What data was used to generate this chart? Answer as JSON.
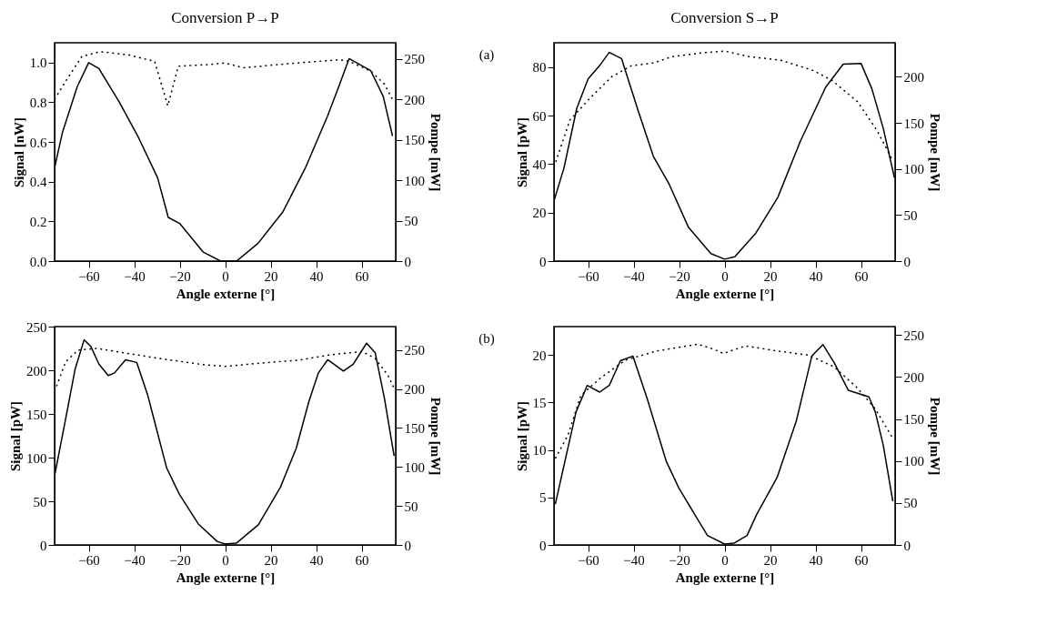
{
  "chart_data": [
    {
      "type": "line",
      "title": "Conversion P→P",
      "xlabel": "Angle externe [°]",
      "ylabel": "Signal [nW]",
      "y2label": "Pompe [mW]",
      "annotations": [
        "(a)"
      ],
      "xlim": [
        -75,
        75
      ],
      "xticks": [
        -60,
        -40,
        -20,
        0,
        20,
        40,
        60
      ],
      "ylim": [
        0,
        1.1
      ],
      "yticks": [
        {
          "value": 0,
          "label": "0.0"
        },
        0.2,
        0.4,
        0.6,
        0.8,
        {
          "value": 1,
          "label": "1.0"
        }
      ],
      "y2lim": [
        0,
        270
      ],
      "y2ticks": [
        0,
        50,
        100,
        150,
        200,
        250
      ],
      "series": [
        {
          "color": "#000000",
          "line_style": "solid",
          "x": [
            -75,
            -71.5,
            -65,
            -60,
            -55.5,
            -46.5,
            -38,
            -29.7,
            -25,
            -20,
            -9.6,
            -2,
            5,
            14.5,
            25.5,
            35.3,
            45,
            50,
            54.5,
            64,
            69.5,
            73.6
          ],
          "values": [
            0.47,
            0.65,
            0.88,
            1.0,
            0.97,
            0.8,
            0.62,
            0.42,
            0.22,
            0.19,
            0.045,
            0,
            0,
            0.09,
            0.25,
            0.47,
            0.73,
            0.88,
            1.02,
            0.96,
            0.83,
            0.63
          ]
        },
        {
          "color": "#000000",
          "line_style": "dotted",
          "axis": "y2",
          "x": [
            -75,
            -70,
            -63,
            -55,
            -42.5,
            -31,
            -25.2,
            -20.6,
            -7.5,
            0,
            8,
            27,
            50.5,
            54.5,
            64,
            70,
            73.6
          ],
          "values": [
            200,
            223,
            253,
            259,
            255,
            247,
            192,
            241,
            243,
            245,
            239,
            244,
            249,
            247,
            235,
            219,
            200
          ]
        }
      ]
    },
    {
      "type": "line",
      "title": "Conversion S→P",
      "xlabel": "Angle externe [°]",
      "ylabel": "Signal [pW]",
      "y2label": "Pompe [mW]",
      "xlim": [
        -75,
        75
      ],
      "xticks": [
        -60,
        -40,
        -20,
        0,
        20,
        40,
        60
      ],
      "ylim": [
        0,
        90
      ],
      "yticks": [
        0,
        20,
        40,
        60,
        80
      ],
      "y2lim": [
        0,
        237
      ],
      "y2ticks": [
        0,
        50,
        100,
        150,
        200
      ],
      "series": [
        {
          "color": "#000000",
          "line_style": "solid",
          "x": [
            -75,
            -70.6,
            -65,
            -60,
            -55,
            -50.7,
            -45.3,
            -38.3,
            -31.3,
            -24.3,
            -15.9,
            -6,
            0,
            4.5,
            13.6,
            23.4,
            33.3,
            44.5,
            52.2,
            60,
            64.8,
            69.8,
            74.7
          ],
          "values": [
            24.8,
            38.4,
            62.9,
            75.1,
            80.5,
            86,
            83.5,
            62.9,
            43.2,
            31.6,
            14,
            3.1,
            0.8,
            1.8,
            11.3,
            26.2,
            49.3,
            71.7,
            81.2,
            81.5,
            71,
            54.7,
            34.4
          ]
        },
        {
          "color": "#000000",
          "line_style": "dotted",
          "axis": "y2",
          "x": [
            -75,
            -68,
            -59.5,
            -49.7,
            -41,
            -31.3,
            -23,
            -10,
            0,
            10.8,
            24.8,
            38.9,
            47.3,
            58.5,
            67,
            74
          ],
          "values": [
            102,
            153,
            176,
            200,
            212,
            215,
            222,
            226,
            228,
            222,
            218,
            207,
            196,
            173,
            142,
            109
          ]
        }
      ]
    },
    {
      "type": "line",
      "xlabel": "Angle externe [°]",
      "ylabel": "Signal [pW]",
      "y2label": "Pompe [mW]",
      "annotations": [
        "(b)"
      ],
      "xlim": [
        -75,
        75
      ],
      "xticks": [
        -60,
        -40,
        -20,
        0,
        20,
        40,
        60
      ],
      "ylim": [
        0,
        250
      ],
      "yticks": [
        0,
        50,
        100,
        150,
        200,
        250
      ],
      "y2lim": [
        0,
        280
      ],
      "y2ticks": [
        0,
        50,
        100,
        150,
        200,
        250
      ],
      "series": [
        {
          "color": "#000000",
          "line_style": "solid",
          "x": [
            -75,
            -70.1,
            -66,
            -62,
            -59,
            -55.5,
            -51.4,
            -48.6,
            -43.8,
            -38.9,
            -34,
            -30.6,
            -25.7,
            -20.1,
            -11.8,
            -3.5,
            0,
            4.9,
            14.6,
            24.3,
            31.3,
            36.8,
            41,
            45.1,
            52,
            56.3,
            62.2,
            66,
            70.1,
            74.3
          ],
          "values": [
            79,
            145,
            201,
            235,
            227,
            207,
            194,
            197,
            212,
            209,
            171,
            137,
            88,
            58,
            24,
            4,
            1,
            2,
            23,
            66,
            111,
            164,
            197,
            212,
            199,
            207,
            231,
            220,
            167,
            102
          ]
        },
        {
          "color": "#000000",
          "line_style": "dotted",
          "axis": "y2",
          "x": [
            -75,
            -70.1,
            -64.6,
            -56.3,
            -43.8,
            -28.5,
            -9,
            0,
            18.8,
            32.6,
            46.5,
            60.4,
            66,
            71.5,
            74.3
          ],
          "values": [
            197,
            235,
            250,
            252,
            246,
            239,
            231,
            229,
            234,
            237,
            244,
            248,
            239,
            218,
            201
          ]
        }
      ]
    },
    {
      "type": "line",
      "xlabel": "Angle externe [°]",
      "ylabel": "Signal [pW]",
      "y2label": "Pompe [mW]",
      "xlim": [
        -75,
        75
      ],
      "xticks": [
        -60,
        -40,
        -20,
        0,
        20,
        40,
        60
      ],
      "ylim": [
        0,
        23
      ],
      "yticks": [
        0,
        5,
        10,
        15,
        20
      ],
      "y2lim": [
        0,
        260
      ],
      "y2ticks": [
        0,
        50,
        100,
        150,
        200,
        250
      ],
      "series": [
        {
          "color": "#000000",
          "line_style": "solid",
          "x": [
            -74.4,
            -70.2,
            -65.3,
            -60.4,
            -54.9,
            -50.7,
            -45.8,
            -40.3,
            -34,
            -25.6,
            -20.1,
            -13.1,
            -7.5,
            0,
            4.3,
            9.9,
            14.1,
            23.1,
            31.5,
            38.4,
            43.3,
            48.2,
            54.4,
            63.5,
            66.3,
            69.8,
            74
          ],
          "values": [
            4.3,
            8.8,
            14,
            16.8,
            16.1,
            16.8,
            19.4,
            19.9,
            15.4,
            8.8,
            6,
            3.2,
            1,
            0.1,
            0.2,
            1,
            3.2,
            7.1,
            13,
            19.9,
            21.1,
            19.2,
            16.3,
            15.6,
            14,
            10.5,
            4.6
          ]
        },
        {
          "color": "#000000",
          "line_style": "dotted",
          "axis": "y2",
          "x": [
            -74.4,
            -68.8,
            -63.2,
            -54.9,
            -43.7,
            -29.8,
            -11.7,
            -4.7,
            -0.5,
            9.2,
            23.1,
            37,
            48.2,
            58,
            66.3,
            74
          ],
          "values": [
            103,
            131,
            178,
            198,
            220,
            231,
            239,
            233,
            228,
            237,
            231,
            226,
            212,
            188,
            162,
            127
          ]
        }
      ]
    }
  ]
}
